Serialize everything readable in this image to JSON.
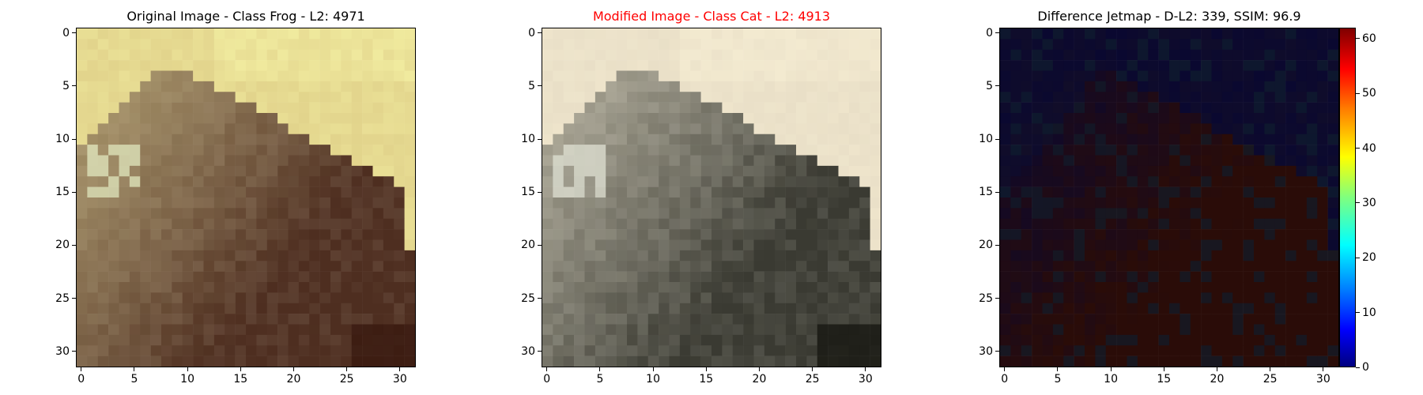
{
  "chart_data": [
    {
      "type": "image",
      "title": "Original Image - Class Frog - L2: 4971",
      "title_color": "#000000",
      "xticks": [
        0,
        5,
        10,
        15,
        20,
        25,
        30
      ],
      "yticks": [
        0,
        5,
        10,
        15,
        20,
        25,
        30
      ],
      "xlim": [
        -0.5,
        31.5
      ],
      "ylim": [
        31.5,
        -0.5
      ],
      "palette": {
        "background": "#e2d48c",
        "light": "#f0ea9e",
        "highlight": "#e7f0c6",
        "subject": "#7b6352",
        "dark": "#4e2e20",
        "shadow": "#3a1a10"
      }
    },
    {
      "type": "image",
      "title": "Modified Image - Class Cat - L2: 4913",
      "title_color": "#ff0000",
      "xticks": [
        0,
        5,
        10,
        15,
        20,
        25,
        30
      ],
      "yticks": [
        0,
        5,
        10,
        15,
        20,
        25,
        30
      ],
      "xlim": [
        -0.5,
        31.5
      ],
      "ylim": [
        31.5,
        -0.5
      ],
      "palette": {
        "background": "#e9dfc7",
        "light": "#f3ead0",
        "highlight": "#e6e8da",
        "subject": "#7a7a70",
        "dark": "#3a3a32",
        "shadow": "#1a1a14"
      }
    },
    {
      "type": "heatmap",
      "title": "Difference Jetmap - D-L2: 339, SSIM: 96.9",
      "title_color": "#000000",
      "xticks": [
        0,
        5,
        10,
        15,
        20,
        25,
        30
      ],
      "yticks": [
        0,
        5,
        10,
        15,
        20,
        25,
        30
      ],
      "xlim": [
        -0.5,
        31.5
      ],
      "ylim": [
        31.5,
        -0.5
      ],
      "colorbar": {
        "ticks": [
          0,
          10,
          20,
          30,
          40,
          50,
          60
        ],
        "range": [
          0,
          62
        ],
        "colormap": "jet"
      },
      "palette": {
        "low": "#0a0830",
        "mid": "#1a1420",
        "warm": "#2a0c08",
        "cool": "#0c1e30"
      }
    }
  ]
}
